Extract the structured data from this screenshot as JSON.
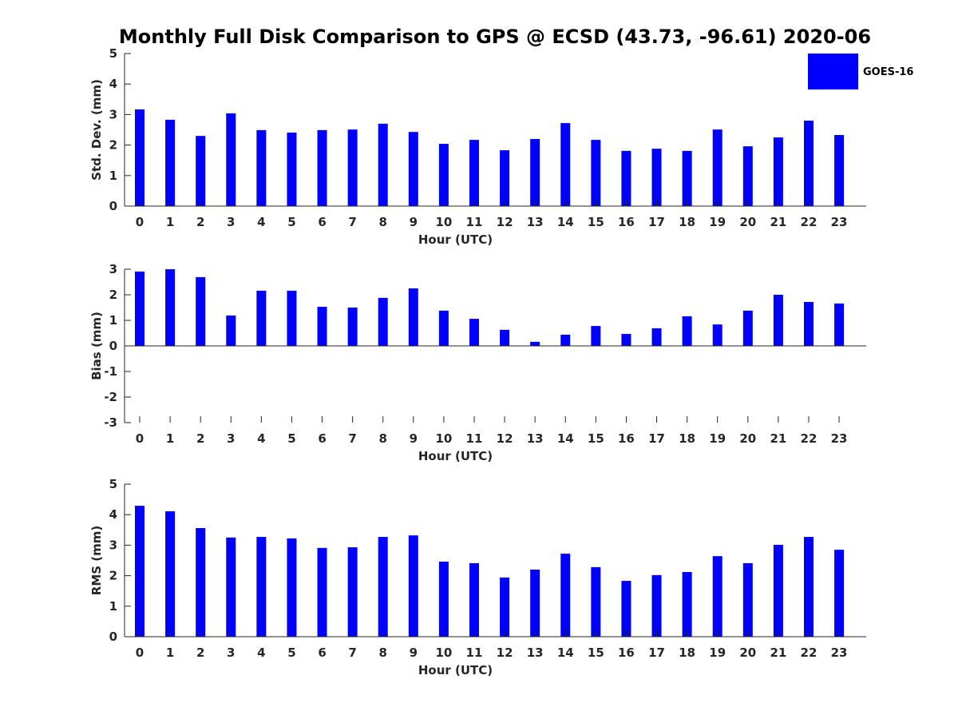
{
  "chart_data": {
    "title": "Monthly Full Disk Comparison to GPS @ ECSD (43.73, -96.61) 2020-06",
    "legend": {
      "entries": [
        "GOES-16"
      ],
      "placement": "top-right"
    },
    "colors": {
      "bar": "#0000ff"
    },
    "panels": [
      {
        "type": "bar",
        "ylabel": "Std. Dev. (mm)",
        "xlabel": "Hour (UTC)",
        "ylim": [
          0,
          5
        ],
        "yticks": [
          0,
          1,
          2,
          3,
          4,
          5
        ],
        "categories": [
          "0",
          "1",
          "2",
          "3",
          "4",
          "5",
          "6",
          "7",
          "8",
          "9",
          "10",
          "11",
          "12",
          "13",
          "14",
          "15",
          "16",
          "17",
          "18",
          "19",
          "20",
          "21",
          "22",
          "23"
        ],
        "series": [
          {
            "name": "GOES-16",
            "values": [
              3.17,
              2.83,
              2.3,
              3.04,
              2.49,
              2.41,
              2.49,
              2.51,
              2.7,
              2.43,
              2.04,
              2.17,
              1.83,
              2.2,
              2.72,
              2.17,
              1.81,
              1.88,
              1.81,
              2.51,
              1.96,
              2.25,
              2.8,
              2.33
            ]
          }
        ]
      },
      {
        "type": "bar",
        "ylabel": "Bias (mm)",
        "xlabel": "Hour (UTC)",
        "ylim": [
          -3,
          3
        ],
        "yticks": [
          -3,
          -2,
          -1,
          0,
          1,
          2,
          3
        ],
        "categories": [
          "0",
          "1",
          "2",
          "3",
          "4",
          "5",
          "6",
          "7",
          "8",
          "9",
          "10",
          "11",
          "12",
          "13",
          "14",
          "15",
          "16",
          "17",
          "18",
          "19",
          "20",
          "21",
          "22",
          "23"
        ],
        "series": [
          {
            "name": "GOES-16",
            "values": [
              2.91,
              3.0,
              2.69,
              1.19,
              2.16,
              2.16,
              1.53,
              1.5,
              1.88,
              2.25,
              1.38,
              1.06,
              0.63,
              0.16,
              0.44,
              0.78,
              0.47,
              0.69,
              1.16,
              0.84,
              1.38,
              2.0,
              1.72,
              1.66
            ]
          }
        ]
      },
      {
        "type": "bar",
        "ylabel": "RMS (mm)",
        "xlabel": "Hour (UTC)",
        "ylim": [
          0,
          5
        ],
        "yticks": [
          0,
          1,
          2,
          3,
          4,
          5
        ],
        "categories": [
          "0",
          "1",
          "2",
          "3",
          "4",
          "5",
          "6",
          "7",
          "8",
          "9",
          "10",
          "11",
          "12",
          "13",
          "14",
          "15",
          "16",
          "17",
          "18",
          "19",
          "20",
          "21",
          "22",
          "23"
        ],
        "series": [
          {
            "name": "GOES-16",
            "values": [
              4.29,
              4.11,
              3.56,
              3.25,
              3.27,
              3.22,
              2.91,
              2.93,
              3.27,
              3.32,
              2.46,
              2.41,
              1.94,
              2.2,
              2.72,
              2.28,
              1.83,
              2.02,
              2.12,
              2.64,
              2.41,
              3.01,
              3.27,
              2.85
            ]
          }
        ]
      }
    ]
  }
}
